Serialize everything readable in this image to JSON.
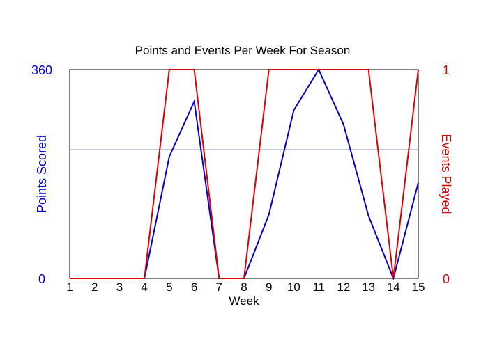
{
  "chart_data": {
    "type": "line",
    "title": "Points and Events Per Week For Season",
    "xlabel": "Week",
    "x": [
      1,
      2,
      3,
      4,
      5,
      6,
      7,
      8,
      9,
      10,
      11,
      12,
      13,
      14,
      15
    ],
    "xlim": [
      1,
      15
    ],
    "series": [
      {
        "axis": "left",
        "color": "#0000cc",
        "values": [
          0,
          0,
          0,
          0,
          210,
          305,
          0,
          0,
          110,
          290,
          360,
          265,
          108,
          0,
          165
        ]
      },
      {
        "axis": "right",
        "color": "#dd0000",
        "values": [
          0,
          0,
          0,
          0,
          1,
          1,
          0,
          0,
          1,
          1,
          1,
          1,
          1,
          0,
          1
        ]
      }
    ],
    "y_left": {
      "label": "Points Scored",
      "ylim": [
        0,
        360
      ],
      "ticks": [
        "0",
        "360"
      ],
      "color": "#0000cc"
    },
    "y_right": {
      "label": "Events Played",
      "ylim": [
        0,
        1
      ],
      "ticks": [
        "0",
        "1"
      ],
      "color": "#dd0000"
    },
    "reference_line": {
      "axis": "left",
      "value": 222,
      "color": "#8888cc"
    },
    "grid": false,
    "legend": "none"
  }
}
